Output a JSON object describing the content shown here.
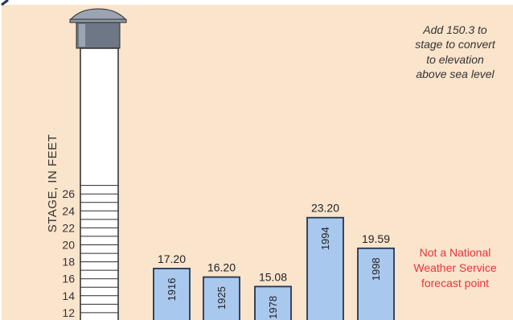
{
  "chart_data": {
    "type": "bar",
    "title": "",
    "ylabel": "STAGE, IN FEET",
    "ylim": [
      10,
      28
    ],
    "yticks": [
      12,
      14,
      16,
      18,
      20,
      22,
      24,
      26
    ],
    "categories": [
      "1916",
      "1925",
      "1978",
      "1994",
      "1998"
    ],
    "values": [
      17.2,
      16.2,
      15.08,
      23.2,
      19.59
    ],
    "value_labels": [
      "17.20",
      "16.20",
      "15.08",
      "23.20",
      "19.59"
    ],
    "grid": false,
    "colors": {
      "bar": "#a9c8ee",
      "bar_edge": "#23364f",
      "background": "#fbe4cc",
      "warning": "#e8333a"
    }
  },
  "annotations": {
    "conversion_note": [
      "Add 150.3 to",
      "stage to convert",
      "to elevation",
      "above sea level"
    ],
    "forecast_note": [
      "Not a National",
      "Weather Service",
      "forecast point"
    ]
  },
  "icons": {
    "gauge_top": "stage-gauge-cap-icon"
  }
}
